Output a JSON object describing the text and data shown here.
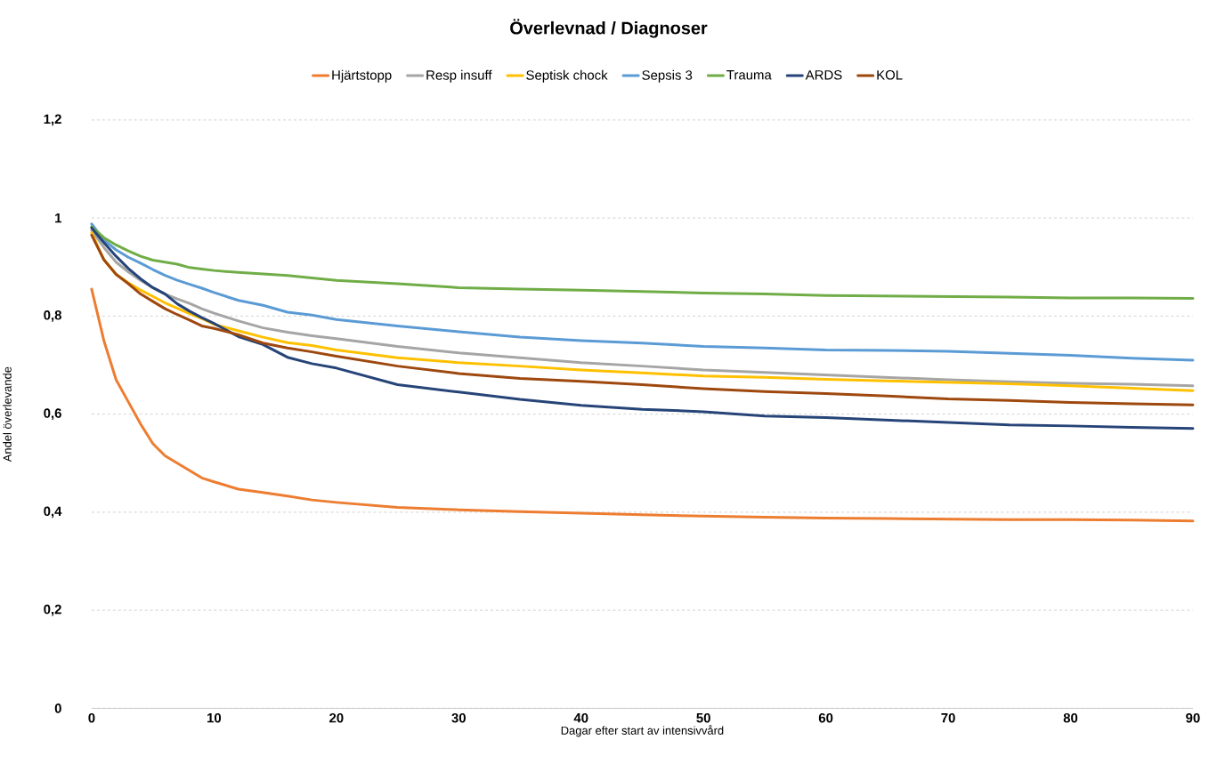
{
  "chart_data": {
    "type": "line",
    "title": "Överlevnad / Diagnoser",
    "xlabel": "Dagar efter start av intensivvård",
    "ylabel": "Andel överlevande",
    "x": [
      0,
      1,
      2,
      3,
      4,
      5,
      6,
      7,
      8,
      9,
      10,
      12,
      14,
      16,
      18,
      20,
      25,
      30,
      35,
      40,
      45,
      50,
      55,
      60,
      65,
      70,
      75,
      80,
      85,
      90
    ],
    "series": [
      {
        "name": "Hjärtstopp",
        "color": "#ed7d31",
        "values": [
          0.855,
          0.75,
          0.67,
          0.625,
          0.58,
          0.54,
          0.515,
          0.5,
          0.485,
          0.47,
          0.462,
          0.447,
          0.44,
          0.433,
          0.425,
          0.42,
          0.41,
          0.405,
          0.401,
          0.398,
          0.395,
          0.392,
          0.39,
          0.388,
          0.387,
          0.386,
          0.385,
          0.385,
          0.384,
          0.382
        ]
      },
      {
        "name": "Resp insuff",
        "color": "#a5a5a5",
        "values": [
          0.975,
          0.94,
          0.91,
          0.89,
          0.873,
          0.858,
          0.845,
          0.835,
          0.826,
          0.815,
          0.806,
          0.79,
          0.776,
          0.767,
          0.76,
          0.754,
          0.738,
          0.725,
          0.715,
          0.705,
          0.698,
          0.69,
          0.685,
          0.68,
          0.675,
          0.67,
          0.666,
          0.663,
          0.661,
          0.658
        ]
      },
      {
        "name": "Septisk chock",
        "color": "#ffc000",
        "values": [
          0.97,
          0.915,
          0.885,
          0.868,
          0.853,
          0.84,
          0.827,
          0.816,
          0.805,
          0.795,
          0.783,
          0.77,
          0.757,
          0.746,
          0.74,
          0.731,
          0.715,
          0.705,
          0.698,
          0.69,
          0.684,
          0.678,
          0.675,
          0.671,
          0.668,
          0.665,
          0.662,
          0.658,
          0.653,
          0.648
        ]
      },
      {
        "name": "Sepsis 3",
        "color": "#5b9bd5",
        "values": [
          0.988,
          0.955,
          0.935,
          0.92,
          0.908,
          0.895,
          0.883,
          0.873,
          0.865,
          0.857,
          0.848,
          0.832,
          0.822,
          0.808,
          0.802,
          0.793,
          0.78,
          0.768,
          0.757,
          0.75,
          0.745,
          0.738,
          0.735,
          0.731,
          0.73,
          0.728,
          0.724,
          0.72,
          0.714,
          0.71
        ]
      },
      {
        "name": "Trauma",
        "color": "#70ad47",
        "values": [
          0.982,
          0.96,
          0.945,
          0.933,
          0.922,
          0.914,
          0.91,
          0.906,
          0.899,
          0.896,
          0.893,
          0.889,
          0.886,
          0.883,
          0.878,
          0.873,
          0.866,
          0.858,
          0.855,
          0.853,
          0.85,
          0.847,
          0.845,
          0.842,
          0.841,
          0.84,
          0.839,
          0.837,
          0.837,
          0.836
        ]
      },
      {
        "name": "ARDS",
        "color": "#264478",
        "values": [
          0.98,
          0.95,
          0.922,
          0.897,
          0.876,
          0.858,
          0.845,
          0.825,
          0.81,
          0.797,
          0.785,
          0.758,
          0.742,
          0.716,
          0.703,
          0.694,
          0.66,
          0.645,
          0.63,
          0.618,
          0.61,
          0.605,
          0.596,
          0.593,
          0.588,
          0.583,
          0.578,
          0.576,
          0.573,
          0.571
        ]
      },
      {
        "name": "KOL",
        "color": "#9e480e",
        "values": [
          0.965,
          0.915,
          0.885,
          0.866,
          0.845,
          0.83,
          0.815,
          0.803,
          0.792,
          0.78,
          0.775,
          0.762,
          0.745,
          0.735,
          0.727,
          0.718,
          0.698,
          0.683,
          0.673,
          0.667,
          0.66,
          0.652,
          0.646,
          0.642,
          0.637,
          0.631,
          0.628,
          0.624,
          0.621,
          0.619
        ]
      }
    ],
    "xlim": [
      0,
      90
    ],
    "xticks": [
      0,
      10,
      20,
      30,
      40,
      50,
      60,
      70,
      80,
      90
    ],
    "ylim": [
      0,
      1.2
    ],
    "yticks": [
      0,
      {
        "value": 0.2,
        "label": "0,2"
      },
      {
        "value": 0.4,
        "label": "0,4"
      },
      {
        "value": 0.6,
        "label": "0,6"
      },
      {
        "value": 0.8,
        "label": "0,8"
      },
      1,
      {
        "value": 1.2,
        "label": "1,2"
      }
    ],
    "grid": "y",
    "legend": "top",
    "marker": "none",
    "line_style": "solid"
  }
}
